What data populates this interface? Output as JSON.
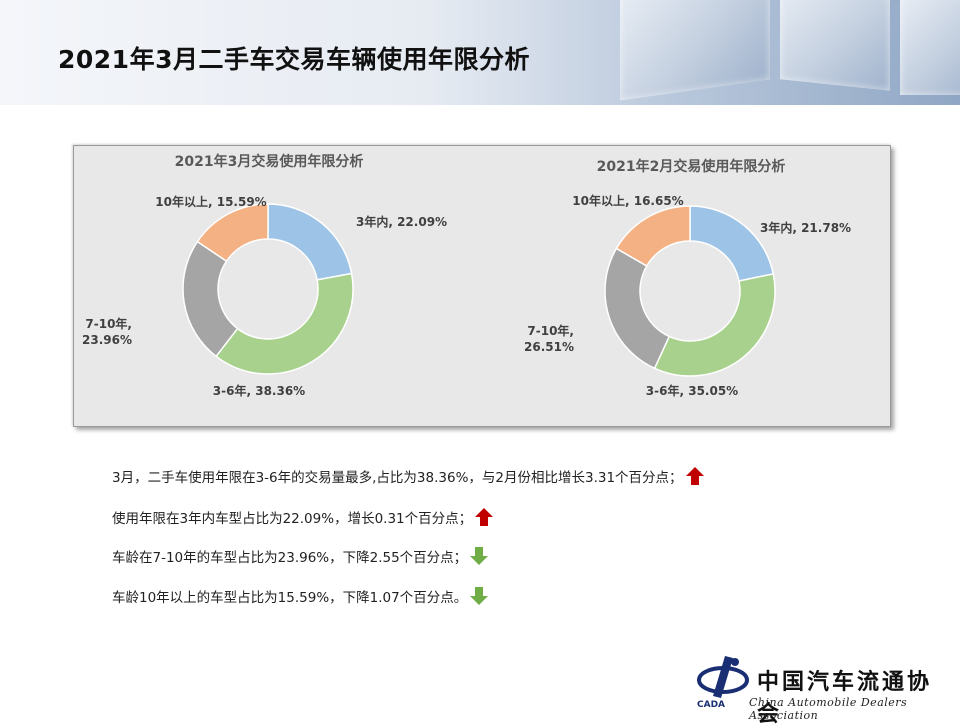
{
  "page": {
    "title": "2021年3月二手车交易车辆使用年限分析"
  },
  "colors": {
    "blue": "#9dc3e6",
    "green": "#a9d18e",
    "gray": "#a5a5a5",
    "orange": "#f4b183",
    "up_arrow": "#c00000",
    "down_arrow": "#70ad47"
  },
  "chart_data": [
    {
      "type": "pie",
      "variant": "donut",
      "title": "2021年3月交易使用年限分析",
      "categories": [
        "3年内",
        "3-6年",
        "7-10年",
        "10年以上"
      ],
      "values": [
        22.09,
        38.36,
        23.96,
        15.59
      ],
      "labels": [
        "3年内, 22.09%",
        "3-6年, 38.36%",
        "7-10年,",
        "10年以上, 15.59%"
      ],
      "label_line2": [
        "",
        "",
        "23.96%",
        ""
      ],
      "colors": [
        "#9dc3e6",
        "#a9d18e",
        "#a5a5a5",
        "#f4b183"
      ],
      "legend": "none"
    },
    {
      "type": "pie",
      "variant": "donut",
      "title": "2021年2月交易使用年限分析",
      "categories": [
        "3年内",
        "3-6年",
        "7-10年",
        "10年以上"
      ],
      "values": [
        21.78,
        35.05,
        26.51,
        16.65
      ],
      "labels": [
        "3年内, 21.78%",
        "3-6年, 35.05%",
        "7-10年,",
        "10年以上, 16.65%"
      ],
      "label_line2": [
        "",
        "",
        "26.51%",
        ""
      ],
      "colors": [
        "#9dc3e6",
        "#a9d18e",
        "#a5a5a5",
        "#f4b183"
      ],
      "legend": "none"
    }
  ],
  "notes": [
    {
      "text": "3月，二手车使用年限在3-6年的交易量最多,占比为38.36%，与2月份相比增长3.31个百分点；",
      "trend": "up",
      "icon": "up-arrow-icon"
    },
    {
      "text": "使用年限在3年内车型占比为22.09%，增长0.31个百分点；",
      "trend": "up",
      "icon": "up-arrow-icon"
    },
    {
      "text": "车龄在7-10年的车型占比为23.96%，下降2.55个百分点；",
      "trend": "down",
      "icon": "down-arrow-icon"
    },
    {
      "text": "车龄10年以上的车型占比为15.59%，下降1.07个百分点。",
      "trend": "down",
      "icon": "down-arrow-icon"
    }
  ],
  "logo": {
    "cn_name": "中国汽车流通协会",
    "en_name": "China Automobile Dealers Association",
    "emblem_text": "CADA"
  }
}
